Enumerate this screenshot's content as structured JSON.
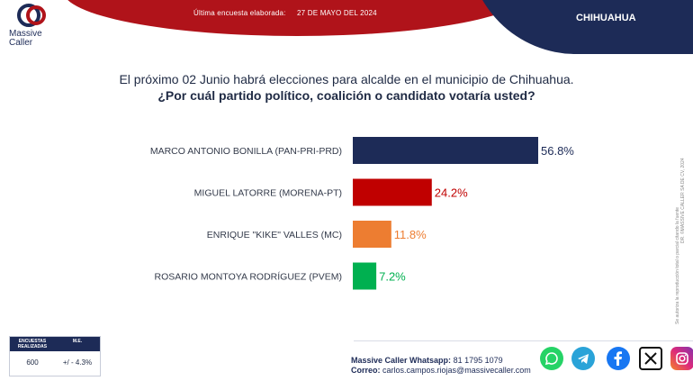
{
  "header": {
    "brand": "Massive Caller",
    "survey_label": "Última encuesta elaborada:",
    "survey_date": "27 DE MAYO DEL 2024",
    "region": "CHIHUAHUA"
  },
  "question": {
    "line1": "El próximo 02 Junio habrá elecciones para alcalde en el municipio de Chihuahua.",
    "line2": "¿Por cuál partido político, coalición o candidato votaría usted?"
  },
  "colors": {
    "navy": "#1d2b57",
    "red": "#c00000",
    "orange": "#ed7d31",
    "green": "#00b050"
  },
  "chart_data": {
    "type": "bar",
    "orientation": "horizontal",
    "categories": [
      "MARCO ANTONIO BONILLA (PAN-PRI-PRD)",
      "MIGUEL LATORRE (MORENA-PT)",
      "ENRIQUE \"KIKE\" VALLES (MC)",
      "ROSARIO MONTOYA RODRÍGUEZ (PVEM)"
    ],
    "values": [
      56.8,
      24.2,
      11.8,
      7.2
    ],
    "value_labels": [
      "56.8%",
      "24.2%",
      "11.8%",
      "7.2%"
    ],
    "bar_colors": [
      "#1d2b57",
      "#c00000",
      "#ed7d31",
      "#00b050"
    ],
    "xlim": [
      0,
      56.8
    ],
    "grid": false
  },
  "side_note": {
    "line1": "DR. ©MASSIVE CALLER SA DE CV, 2024",
    "line2": "Se autoriza la reproducción total o parcial citando la fuente"
  },
  "stats": {
    "col1_header": "ENCUESTAS REALIZADAS",
    "col2_header": "M.E.",
    "col1_value": "600",
    "col2_value": "+/ - 4.3%"
  },
  "footer": {
    "whatsapp_label": "Massive Caller Whatsapp:",
    "whatsapp_number": "81 1795 1079",
    "email_label": "Correo:",
    "email": "carlos.campos.riojas@massivecaller.com"
  },
  "social_icons": [
    "whatsapp-icon",
    "telegram-icon",
    "facebook-icon",
    "x-icon",
    "instagram-icon"
  ]
}
